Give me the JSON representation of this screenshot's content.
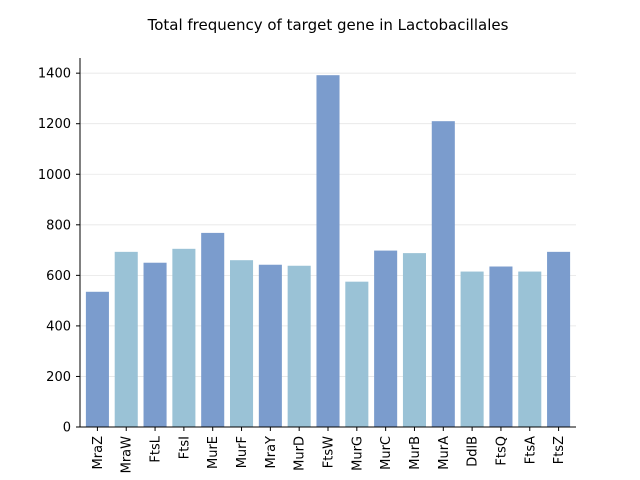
{
  "chart_data": {
    "type": "bar",
    "title": "Total frequency of target gene in Lactobacillales",
    "xlabel": "",
    "ylabel": "",
    "categories": [
      "MraZ",
      "MraW",
      "FtsL",
      "FtsI",
      "MurE",
      "MurF",
      "MraY",
      "MurD",
      "FtsW",
      "MurG",
      "MurC",
      "MurB",
      "MurA",
      "DdlB",
      "FtsQ",
      "FtsA",
      "FtsZ"
    ],
    "values": [
      535,
      693,
      650,
      705,
      768,
      660,
      642,
      638,
      1392,
      575,
      698,
      688,
      1210,
      615,
      635,
      615,
      693
    ],
    "bar_colors": [
      "#7b9ccd",
      "#9ac2d6"
    ],
    "ylim": [
      0,
      1460
    ],
    "yticks": [
      0,
      200,
      400,
      600,
      800,
      1000,
      1200,
      1400
    ],
    "grid": "horizontal",
    "legend": "none"
  }
}
